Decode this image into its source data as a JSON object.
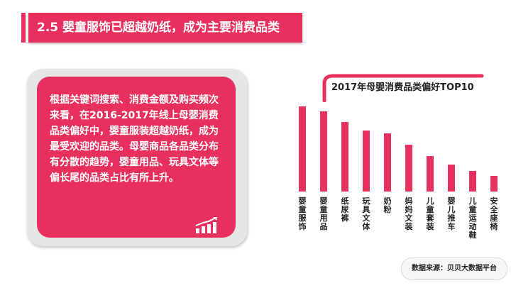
{
  "header": {
    "title": "2.5 婴童服饰已超越奶纸，成为主要消费品类"
  },
  "card": {
    "body": "根据关键词搜索、消费金额及购买频次来看，在2016-2017年线上母婴消费品类偏好中，婴童服装超越奶纸，成为最受欢迎的品类。母婴商品各品类分布有分散的趋势，婴童用品、玩具文体等偏长尾的品类占比有所上升。",
    "icon": "bar-growth-icon"
  },
  "chart_data": {
    "type": "bar",
    "title": "2017年母婴消费品类偏好TOP10",
    "categories": [
      "婴童服饰",
      "婴童用品",
      "纸尿裤",
      "玩具文体",
      "奶粉",
      "妈妈文装",
      "儿童套装",
      "婴儿推车",
      "儿童运动鞋",
      "安全座椅"
    ],
    "values": [
      100,
      94,
      82,
      72,
      68,
      55,
      42,
      32,
      24,
      18
    ],
    "ylim": [
      0,
      100
    ],
    "grid": false,
    "colors": {
      "bar": "#e8305e"
    }
  },
  "footer": {
    "source": "数据来源：贝贝大数据平台"
  },
  "colors": {
    "accent": "#e8305e",
    "frame": "#e6e6e6",
    "text_dark": "#222222"
  }
}
